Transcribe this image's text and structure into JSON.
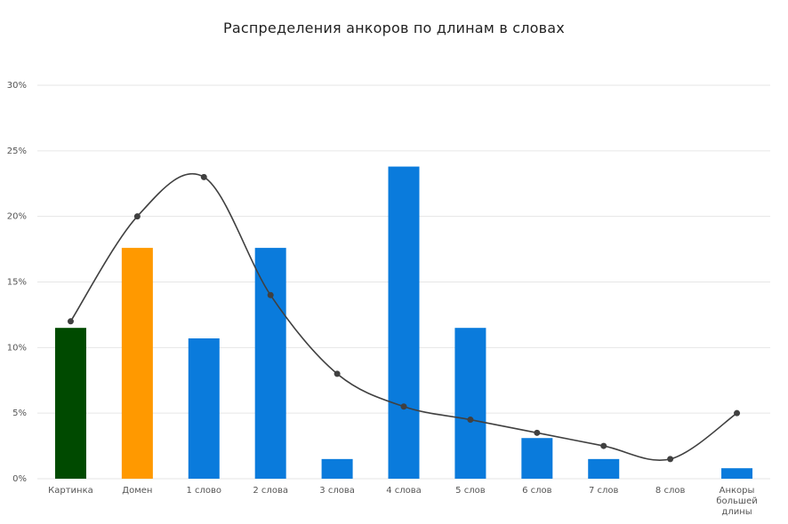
{
  "chart_data": {
    "type": "bar",
    "title": "Распределения анкоров по длинам в словах",
    "xlabel": "",
    "ylabel": "",
    "ylim": [
      0,
      30
    ],
    "y_ticks": [
      "0%",
      "5%",
      "10%",
      "15%",
      "20%",
      "25%",
      "30%"
    ],
    "y_tick_values": [
      0,
      5,
      10,
      15,
      20,
      25,
      30
    ],
    "grid": true,
    "categories": [
      [
        "Картинка"
      ],
      [
        "Домен"
      ],
      [
        "1 слово"
      ],
      [
        "2 слова"
      ],
      [
        "3 слова"
      ],
      [
        "4 слова"
      ],
      [
        "5 слов"
      ],
      [
        "6 слов"
      ],
      [
        "7 слов"
      ],
      [
        "8 слов"
      ],
      [
        "Анкоры",
        "большей",
        "длины"
      ]
    ],
    "series": [
      {
        "kind": "bar",
        "values": [
          11.5,
          17.6,
          10.7,
          17.6,
          1.5,
          23.8,
          11.5,
          3.1,
          1.5,
          0,
          0.8
        ],
        "colors": [
          "#004a00",
          "#ff9900",
          "#0a7bdc",
          "#0a7bdc",
          "#0a7bdc",
          "#0a7bdc",
          "#0a7bdc",
          "#0a7bdc",
          "#0a7bdc",
          "#0a7bdc",
          "#0a7bdc"
        ]
      },
      {
        "kind": "line",
        "smooth": true,
        "color": "#404040",
        "values": [
          12,
          20,
          23,
          14,
          8,
          5.5,
          4.5,
          3.5,
          2.5,
          1.5,
          5
        ]
      }
    ]
  }
}
